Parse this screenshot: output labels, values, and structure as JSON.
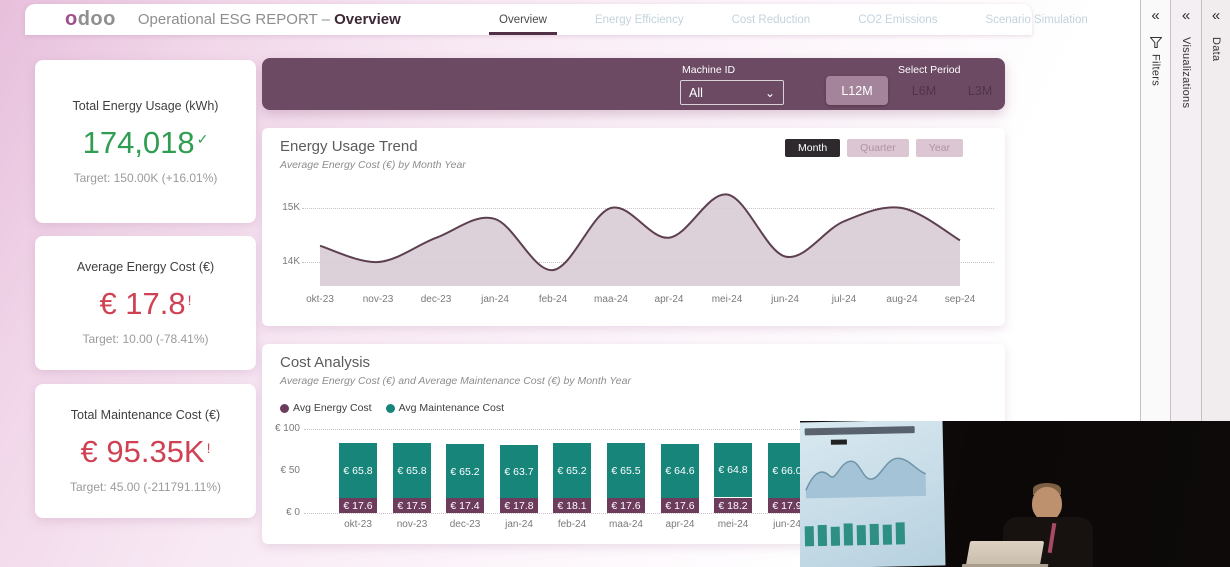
{
  "header": {
    "logo_text": "odoo",
    "title_prefix": "Operational ESG REPORT –",
    "title_page": "Overview",
    "tabs": [
      {
        "label": "Overview",
        "active": true
      },
      {
        "label": "Energy Efficiency",
        "active": false
      },
      {
        "label": "Cost Reduction",
        "active": false
      },
      {
        "label": "CO2 Emissions",
        "active": false
      },
      {
        "label": "Scenario Simulation",
        "active": false
      }
    ]
  },
  "side_panels": [
    {
      "label": "Filters",
      "icon": "filter-funnel-icon",
      "collapse_icon": "«"
    },
    {
      "label": "Visualizations",
      "collapse_icon": "«"
    },
    {
      "label": "Data",
      "collapse_icon": "«"
    }
  ],
  "filter_bar": {
    "machine_id_label": "Machine ID",
    "machine_id_value": "All",
    "select_period_label": "Select Period",
    "period_buttons": [
      {
        "label": "L12M",
        "active": true
      },
      {
        "label": "L6M",
        "active": false
      },
      {
        "label": "L3M",
        "active": false
      }
    ]
  },
  "kpis": [
    {
      "title": "Total Energy Usage (kWh)",
      "value": "174,018",
      "indicator": "✓",
      "target": "Target: 150.00K (+16.01%)",
      "color": "#2f9e52"
    },
    {
      "title": "Average Energy Cost (€)",
      "value": "€ 17.8",
      "indicator": "!",
      "target": "Target: 10.00 (-78.41%)",
      "color": "#cf4254"
    },
    {
      "title": "Total Maintenance Cost (€)",
      "value": "€ 95.35K",
      "indicator": "!",
      "target": "Target: 45.00 (-211791.11%)",
      "color": "#cf4254"
    }
  ],
  "trend": {
    "period_toggle": [
      {
        "label": "Month",
        "active": true
      },
      {
        "label": "Quarter",
        "active": false
      },
      {
        "label": "Year",
        "active": false
      }
    ]
  },
  "chart_data": [
    {
      "type": "area",
      "title": "Energy Usage Trend",
      "subtitle": "Average Energy Cost (€) by Month Year",
      "categories": [
        "okt-23",
        "nov-23",
        "dec-23",
        "jan-24",
        "feb-24",
        "maa-24",
        "apr-24",
        "mei-24",
        "jun-24",
        "jul-24",
        "aug-24",
        "sep-24"
      ],
      "values": [
        14300,
        14000,
        14450,
        14800,
        13850,
        15000,
        14450,
        15250,
        14100,
        14750,
        15000,
        14400
      ],
      "y_ticks": [
        {
          "label": "15K",
          "value": 15000,
          "grid": true
        },
        {
          "label": "14K",
          "value": 14000,
          "grid": true
        }
      ],
      "ylim": [
        13600,
        15450
      ],
      "line_color": "#5d4050",
      "fill_color": "#d9ccd5",
      "legend_position": "none",
      "grid": "dotted-horizontal"
    },
    {
      "type": "bar",
      "stacked": true,
      "title": "Cost Analysis",
      "subtitle": "Average Energy Cost (€) and Average Maintenance Cost (€) by Month Year",
      "categories": [
        "okt-23",
        "nov-23",
        "dec-23",
        "jan-24",
        "feb-24",
        "maa-24",
        "apr-24",
        "mei-24",
        "jun-24"
      ],
      "series": [
        {
          "name": "Avg Energy Cost",
          "color": "#6d3c5d",
          "values": [
            17.6,
            17.5,
            17.4,
            17.8,
            18.1,
            17.6,
            17.6,
            18.2,
            17.9
          ]
        },
        {
          "name": "Avg Maintenance Cost",
          "color": "#17857a",
          "values": [
            65.8,
            65.8,
            65.2,
            63.7,
            65.2,
            65.5,
            64.6,
            64.8,
            66.0
          ]
        }
      ],
      "value_prefix": "€ ",
      "y_ticks": [
        {
          "label": "€ 100",
          "value": 100,
          "grid": true
        },
        {
          "label": "€ 50",
          "value": 50,
          "grid": false
        },
        {
          "label": "€ 0",
          "value": 0,
          "grid": true
        }
      ],
      "ylim": [
        0,
        100
      ],
      "legend_position": "top-left"
    }
  ]
}
